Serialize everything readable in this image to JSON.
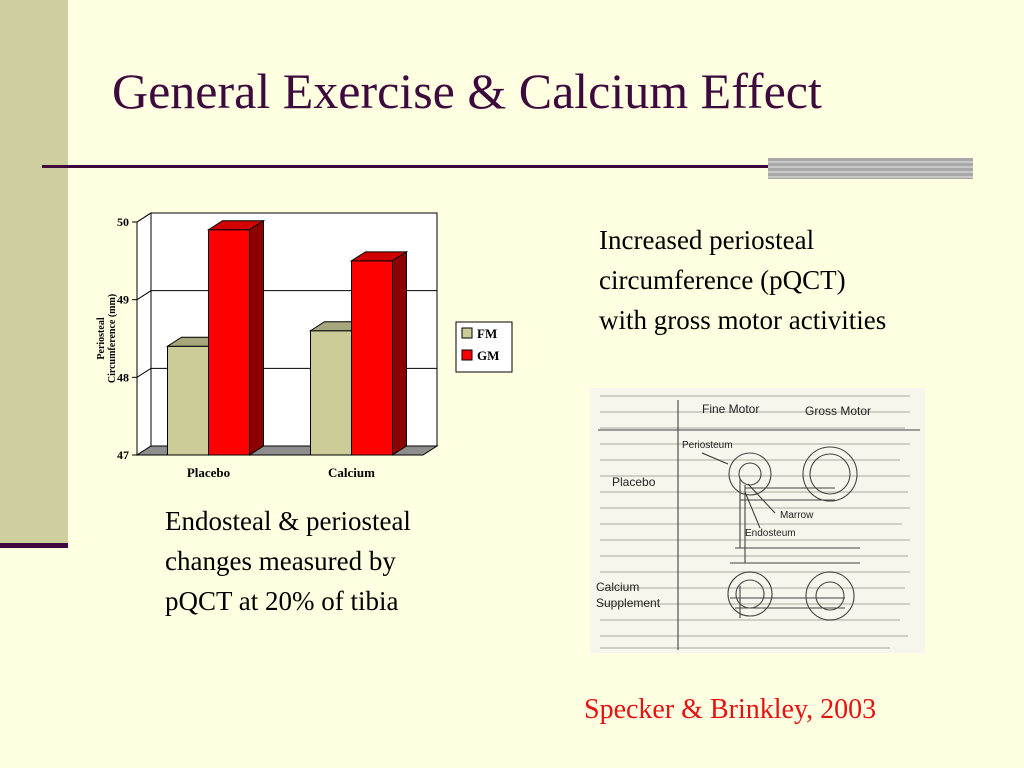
{
  "slide": {
    "title": "General Exercise & Calcium Effect",
    "colors": {
      "title": "#3E0A3E",
      "background": "#FFFFE1",
      "side_bar": "#CFCE9F",
      "citation": "#E81010"
    }
  },
  "text_right": [
    "Increased periosteal",
    "circumference (pQCT)",
    "with gross motor activities"
  ],
  "text_bottom": [
    "Endosteal & periosteal",
    "changes measured by",
    "pQCT at 20% of tibia"
  ],
  "citation": "Specker & Brinkley, 2003",
  "figure": {
    "col_fine": "Fine Motor",
    "col_gross": "Gross Motor",
    "row_placebo": "Placebo",
    "row_calcium_1": "Calcium",
    "row_calcium_2": "Supplement",
    "label_periosteum": "Periosteum",
    "label_marrow": "Marrow",
    "label_endosteum": "Endosteum"
  },
  "chart_data": {
    "type": "bar",
    "style": "3d",
    "categories": [
      "Placebo",
      "Calcium"
    ],
    "series": [
      {
        "name": "FM",
        "values": [
          48.4,
          48.6
        ],
        "color": "#CCCC99"
      },
      {
        "name": "GM",
        "values": [
          49.9,
          49.5
        ],
        "color": "#FF0000"
      }
    ],
    "ylabel": "Periosteal Circumference (mm)",
    "yticks": [
      47,
      48,
      49,
      50
    ],
    "ylim": [
      47,
      50
    ],
    "grid": true,
    "legend": "right"
  }
}
